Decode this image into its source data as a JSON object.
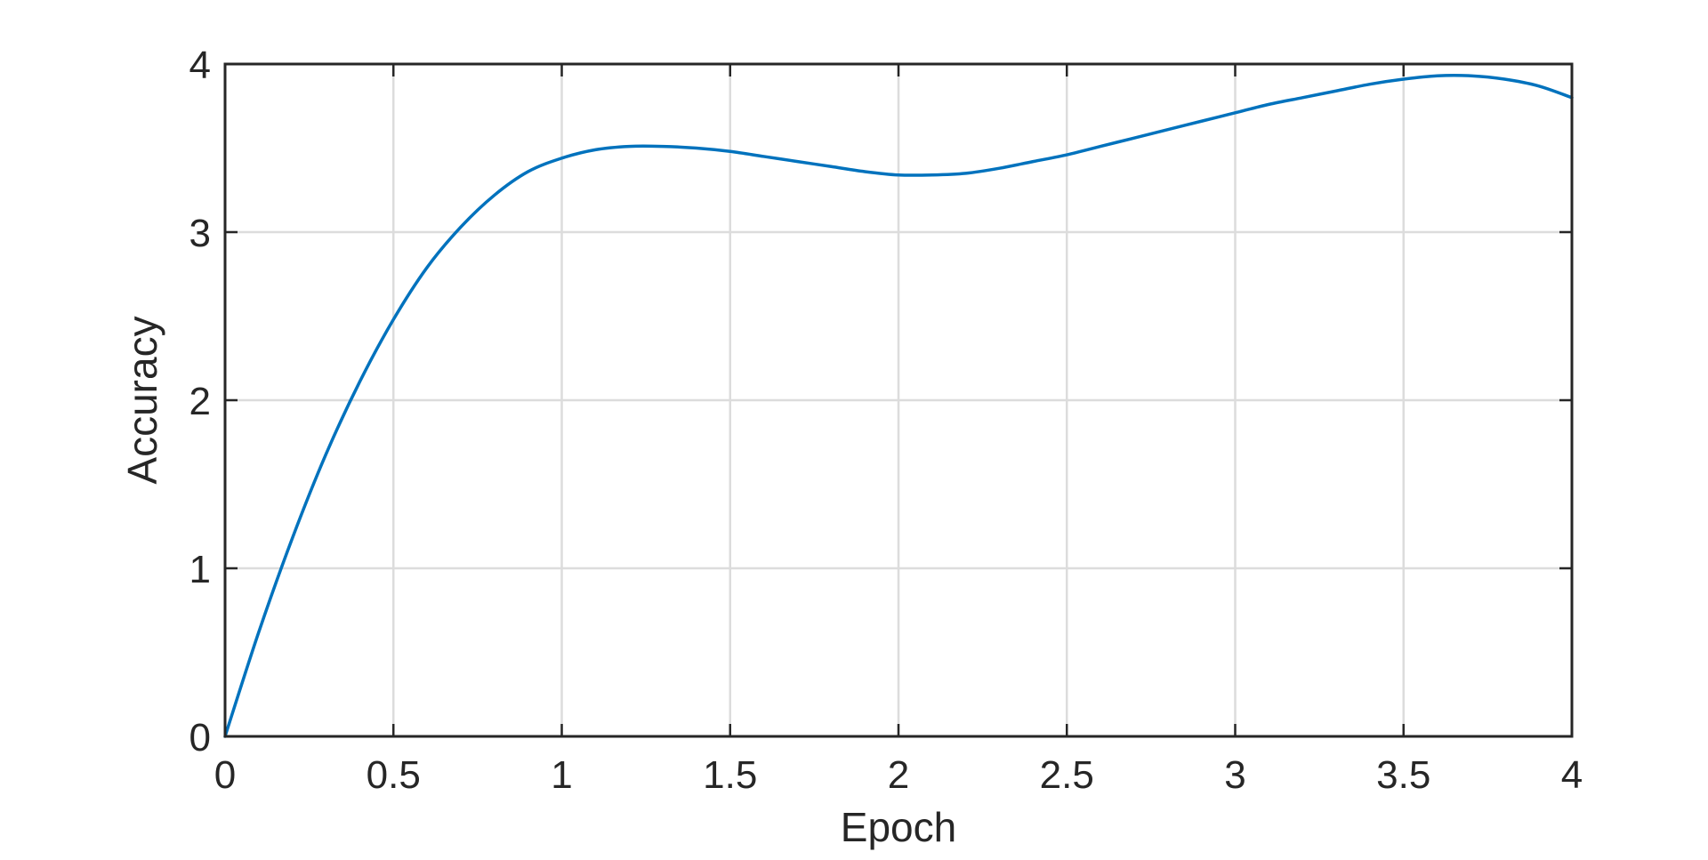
{
  "chart_data": {
    "type": "line",
    "title": "",
    "xlabel": "Epoch",
    "ylabel": "Accuracy",
    "xlim": [
      0,
      4
    ],
    "ylim": [
      0,
      4
    ],
    "xticks": [
      "0",
      "0.5",
      "1",
      "1.5",
      "2",
      "2.5",
      "3",
      "3.5",
      "4"
    ],
    "yticks": [
      "0",
      "1",
      "2",
      "3",
      "4"
    ],
    "grid": true,
    "series": [
      {
        "color": "#0072BD",
        "x": [
          0,
          0.1,
          0.2,
          0.3,
          0.4,
          0.5,
          0.6,
          0.7,
          0.8,
          0.9,
          1.0,
          1.1,
          1.2,
          1.3,
          1.4,
          1.5,
          1.6,
          1.7,
          1.8,
          1.9,
          2.0,
          2.1,
          2.2,
          2.3,
          2.4,
          2.5,
          2.6,
          2.7,
          2.8,
          2.9,
          3.0,
          3.1,
          3.2,
          3.3,
          3.4,
          3.5,
          3.6,
          3.7,
          3.8,
          3.9,
          4.0
        ],
        "y": [
          0,
          0.62,
          1.18,
          1.68,
          2.11,
          2.48,
          2.79,
          3.03,
          3.22,
          3.36,
          3.44,
          3.49,
          3.51,
          3.51,
          3.5,
          3.48,
          3.45,
          3.42,
          3.39,
          3.36,
          3.34,
          3.34,
          3.35,
          3.38,
          3.42,
          3.46,
          3.51,
          3.56,
          3.61,
          3.66,
          3.71,
          3.76,
          3.8,
          3.84,
          3.88,
          3.91,
          3.93,
          3.93,
          3.91,
          3.87,
          3.8
        ]
      }
    ]
  }
}
